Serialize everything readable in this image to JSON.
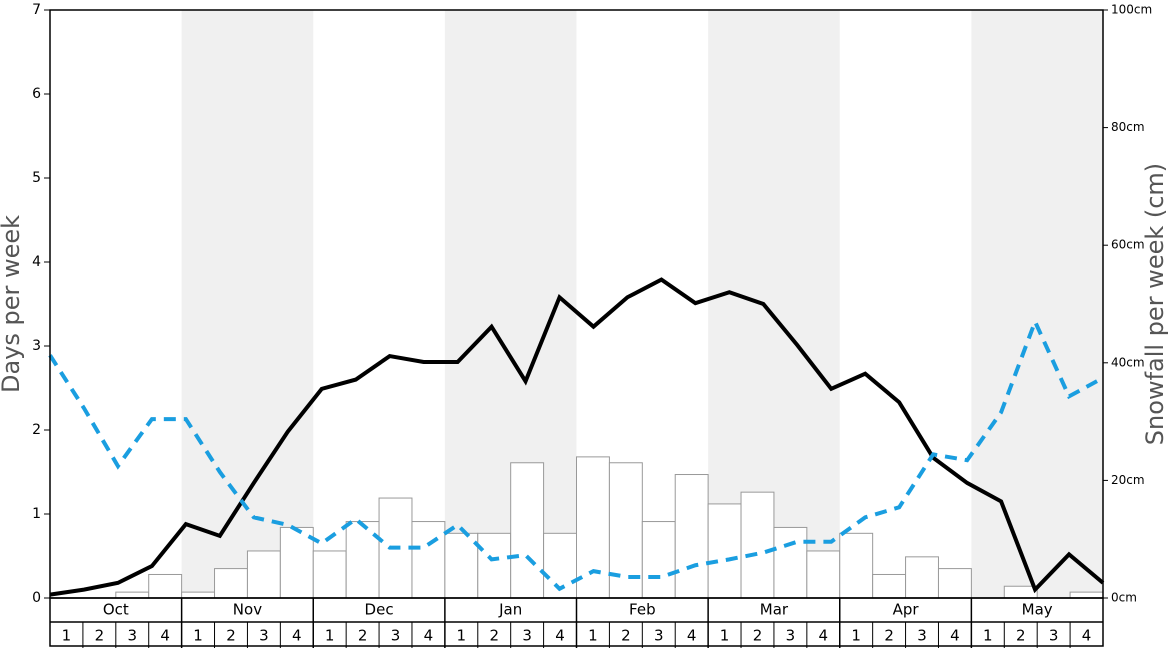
{
  "chart_data": {
    "type": "combo",
    "ylabel": "Days per week",
    "y2label": "Snowfall per week (cm)",
    "months": [
      "Oct",
      "Nov",
      "Dec",
      "Jan",
      "Feb",
      "Mar",
      "Apr",
      "May"
    ],
    "categories": [
      "1",
      "2",
      "3",
      "4",
      "1",
      "2",
      "3",
      "4",
      "1",
      "2",
      "3",
      "4",
      "1",
      "2",
      "3",
      "4",
      "1",
      "2",
      "3",
      "4",
      "1",
      "2",
      "3",
      "4",
      "1",
      "2",
      "3",
      "4",
      "1",
      "2",
      "3",
      "4"
    ],
    "ylim": [
      0,
      7
    ],
    "yticks": [
      0,
      1,
      2,
      3,
      4,
      5,
      6,
      7
    ],
    "y2lim": [
      0,
      100
    ],
    "y2ticks": [
      {
        "value": 0,
        "label": "0cm"
      },
      {
        "value": 20,
        "label": "20cm"
      },
      {
        "value": 40,
        "label": "40cm"
      },
      {
        "value": 60,
        "label": "60cm"
      },
      {
        "value": 80,
        "label": "80cm"
      },
      {
        "value": 100,
        "label": "100cm"
      }
    ],
    "series": [
      {
        "type": "bar",
        "axis": "y2",
        "color": "#ffffff",
        "values": [
          0,
          0,
          1,
          4,
          1,
          5,
          8,
          12,
          8,
          13,
          17,
          13,
          11,
          11,
          23,
          11,
          24,
          23,
          13,
          21,
          16,
          18,
          12,
          8,
          11,
          4,
          7,
          5,
          0,
          2,
          0,
          1
        ]
      },
      {
        "type": "line",
        "axis": "y",
        "color": "#000000",
        "values": [
          0.04,
          0.1,
          0.18,
          0.38,
          0.88,
          0.74,
          1.37,
          1.98,
          2.49,
          2.6,
          2.88,
          2.81,
          2.81,
          3.23,
          2.58,
          3.58,
          3.23,
          3.58,
          3.79,
          3.51,
          3.64,
          3.5,
          3.01,
          2.49,
          2.67,
          2.33,
          1.67,
          1.37,
          1.15,
          0.1,
          0.52,
          0.18
        ]
      },
      {
        "type": "line",
        "axis": "y",
        "color": "#1a9ee0",
        "dashed": true,
        "values": [
          2.89,
          2.26,
          1.57,
          2.13,
          2.13,
          1.5,
          0.96,
          0.87,
          0.65,
          0.94,
          0.6,
          0.6,
          0.87,
          0.46,
          0.51,
          0.11,
          0.32,
          0.25,
          0.25,
          0.39,
          0.46,
          0.54,
          0.67,
          0.67,
          0.96,
          1.08,
          1.71,
          1.64,
          2.21,
          3.29,
          2.4,
          2.62
        ]
      }
    ]
  }
}
